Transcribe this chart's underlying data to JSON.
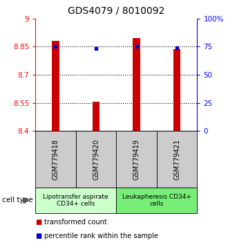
{
  "title": "GDS4079 / 8010092",
  "samples": [
    "GSM779418",
    "GSM779420",
    "GSM779419",
    "GSM779421"
  ],
  "bar_values": [
    8.88,
    8.555,
    8.895,
    8.835
  ],
  "dot_values": [
    8.85,
    8.84,
    8.85,
    8.845
  ],
  "y_min": 8.4,
  "y_max": 9.0,
  "y_ticks": [
    8.4,
    8.55,
    8.7,
    8.85,
    9.0
  ],
  "y_tick_labels": [
    "8.4",
    "8.55",
    "8.7",
    "8.85",
    "9"
  ],
  "right_y_ticks": [
    0,
    25,
    50,
    75,
    100
  ],
  "right_y_tick_labels": [
    "0",
    "25",
    "50",
    "75",
    "100%"
  ],
  "bar_color": "#cc0000",
  "dot_color": "#0000cc",
  "group1_label": "Lipotransfer aspirate\nCD34+ cells",
  "group2_label": "Leukapheresis CD34+\ncells",
  "group1_color": "#ccffcc",
  "group2_color": "#77ee77",
  "sample_box_color": "#cccccc",
  "cell_type_label": "cell type",
  "legend_bar_label": "transformed count",
  "legend_dot_label": "percentile rank within the sample",
  "title_fontsize": 10,
  "tick_fontsize": 7.5,
  "sample_fontsize": 7,
  "group_fontsize": 6.5,
  "legend_fontsize": 7
}
